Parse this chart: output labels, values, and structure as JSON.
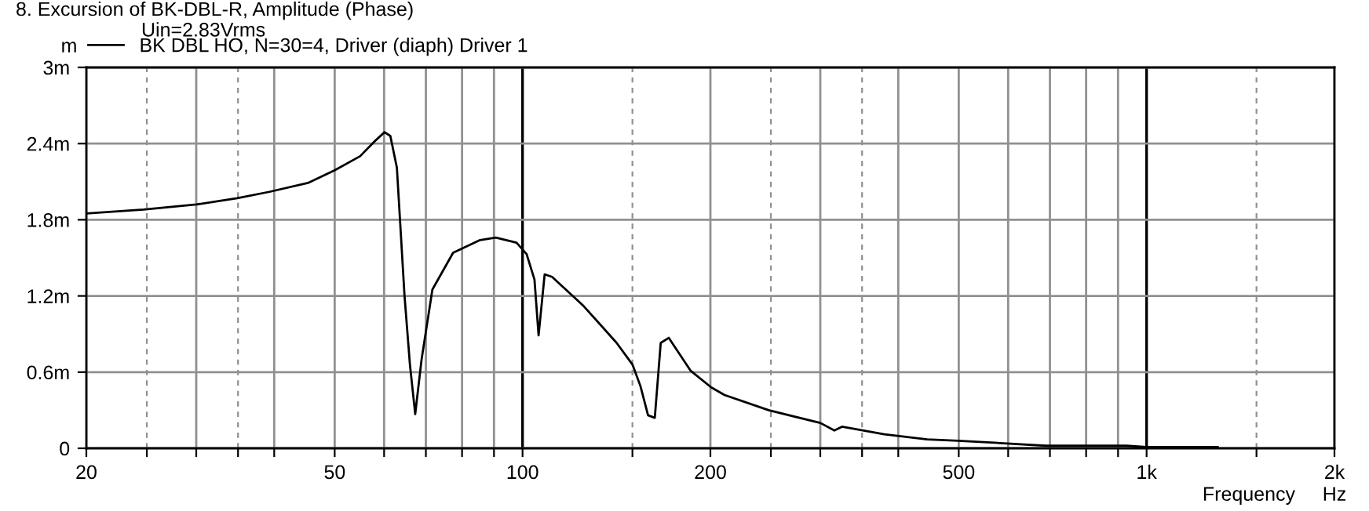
{
  "chart_data": {
    "type": "line",
    "title": "8. Excursion of BK-DBL-R, Amplitude (Phase)",
    "ylabel": "m",
    "xlabel": "Frequency",
    "annotations": [
      "Uin=2.83Vrms",
      "Hz"
    ],
    "log": "x",
    "grid": true,
    "legend": "top left",
    "line_style": "solid",
    "marker": "none",
    "xlim": [
      20,
      2000
    ],
    "ylim": [
      0,
      3
    ],
    "xticks": [
      20,
      {
        "value": 25,
        "label": null
      },
      {
        "value": 30,
        "label": null
      },
      {
        "value": 35,
        "label": null
      },
      {
        "value": 40,
        "label": null
      },
      50,
      {
        "value": 60,
        "label": null
      },
      {
        "value": 70,
        "label": null
      },
      {
        "value": 80,
        "label": null
      },
      {
        "value": 90,
        "label": null
      },
      100,
      {
        "value": 150,
        "label": null
      },
      200,
      {
        "value": 250,
        "label": null
      },
      {
        "value": 300,
        "label": null
      },
      {
        "value": 350,
        "label": null
      },
      {
        "value": 400,
        "label": null
      },
      500,
      {
        "value": 600,
        "label": null
      },
      {
        "value": 700,
        "label": null
      },
      {
        "value": 800,
        "label": null
      },
      {
        "value": 900,
        "label": null
      },
      {
        "value": 1000,
        "label": "1k"
      },
      {
        "value": 1500,
        "label": null
      },
      {
        "value": 2000,
        "label": "2k"
      }
    ],
    "yticks": [
      0,
      {
        "value": 0.6,
        "label": "0.6m"
      },
      {
        "value": 1.2,
        "label": "1.2m"
      },
      {
        "value": 1.8,
        "label": "1.8m"
      },
      {
        "value": 2.4,
        "label": "2.4m"
      },
      {
        "value": 3,
        "label": "3m"
      }
    ],
    "series": [
      {
        "name": "BK DBL HO, N=30=4, Driver (diaph) Driver 1",
        "color": "#000000",
        "x": [
          20,
          24.7,
          30,
          34.9,
          39.3,
          45.3,
          50,
          54.9,
          58,
          60.1,
          61.4,
          62.9,
          64.7,
          66,
          67.3,
          68.9,
          71.7,
          77.4,
          85.5,
          90.6,
          97.8,
          101.5,
          104.5,
          106.1,
          108.5,
          111.5,
          125.3,
          141.5,
          150,
          154.5,
          158.9,
          162.9,
          166.5,
          171.5,
          186,
          200.6,
          210.7,
          248,
          300,
          316,
          325,
          380,
          445,
          499,
          590,
          690,
          929,
          1000,
          1300
        ],
        "values": [
          1.85,
          1.88,
          1.92,
          1.97,
          2.02,
          2.09,
          2.19,
          2.3,
          2.42,
          2.49,
          2.46,
          2.21,
          1.2,
          0.66,
          0.27,
          0.7,
          1.25,
          1.54,
          1.64,
          1.66,
          1.62,
          1.53,
          1.33,
          0.89,
          1.37,
          1.35,
          1.12,
          0.83,
          0.66,
          0.49,
          0.26,
          0.24,
          0.83,
          0.87,
          0.61,
          0.48,
          0.42,
          0.3,
          0.2,
          0.14,
          0.17,
          0.11,
          0.07,
          0.06,
          0.04,
          0.02,
          0.02,
          0.01,
          0.01
        ]
      }
    ]
  }
}
